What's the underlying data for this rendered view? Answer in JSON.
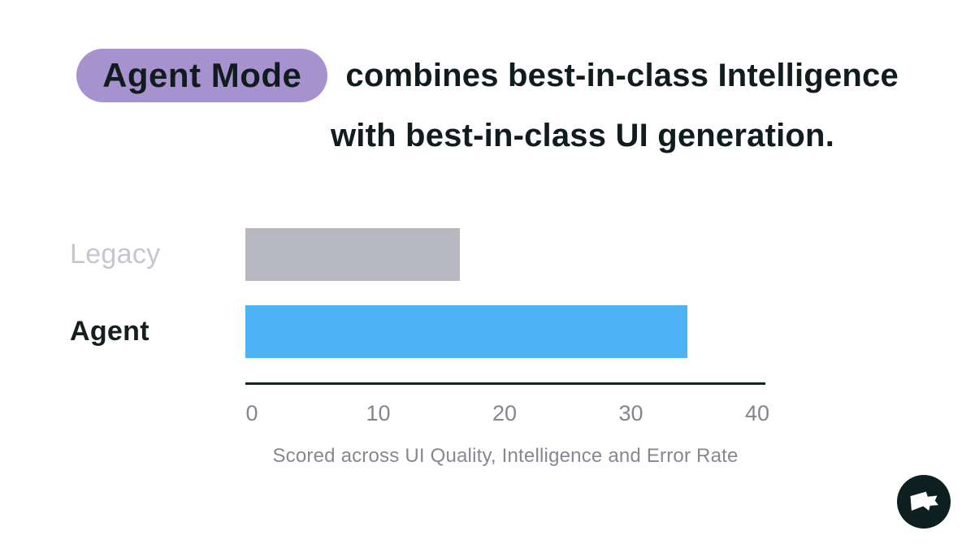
{
  "header": {
    "badge_label": "Agent Mode",
    "title_line1": "combines best-in-class Intelligence",
    "title_line2": "with best-in-class UI generation.",
    "badge_color": "#a792d0",
    "text_color": "#101c1e"
  },
  "chart_data": {
    "type": "bar",
    "orientation": "horizontal",
    "title": "",
    "categories": [
      "Legacy",
      "Agent"
    ],
    "values": [
      17,
      35
    ],
    "xlabel": "",
    "ylabel": "",
    "xlim": [
      0,
      40
    ],
    "xticks": [
      0,
      10,
      20,
      30,
      40
    ],
    "grid": false,
    "legend_position": "none",
    "bar_colors": [
      "#b7b8c1",
      "#4eb3f5"
    ],
    "label_colors": [
      "#c5c6d2",
      "#13201f"
    ],
    "axis_color": "#15262a",
    "tick_color": "#84858f",
    "caption": "Scored across UI Quality, Intelligence and Error Rate",
    "caption_color": "#868792"
  },
  "logo": {
    "name": "flag-logo-badge",
    "background_color": "#0d1f1f",
    "foreground_color": "#ffffff"
  }
}
